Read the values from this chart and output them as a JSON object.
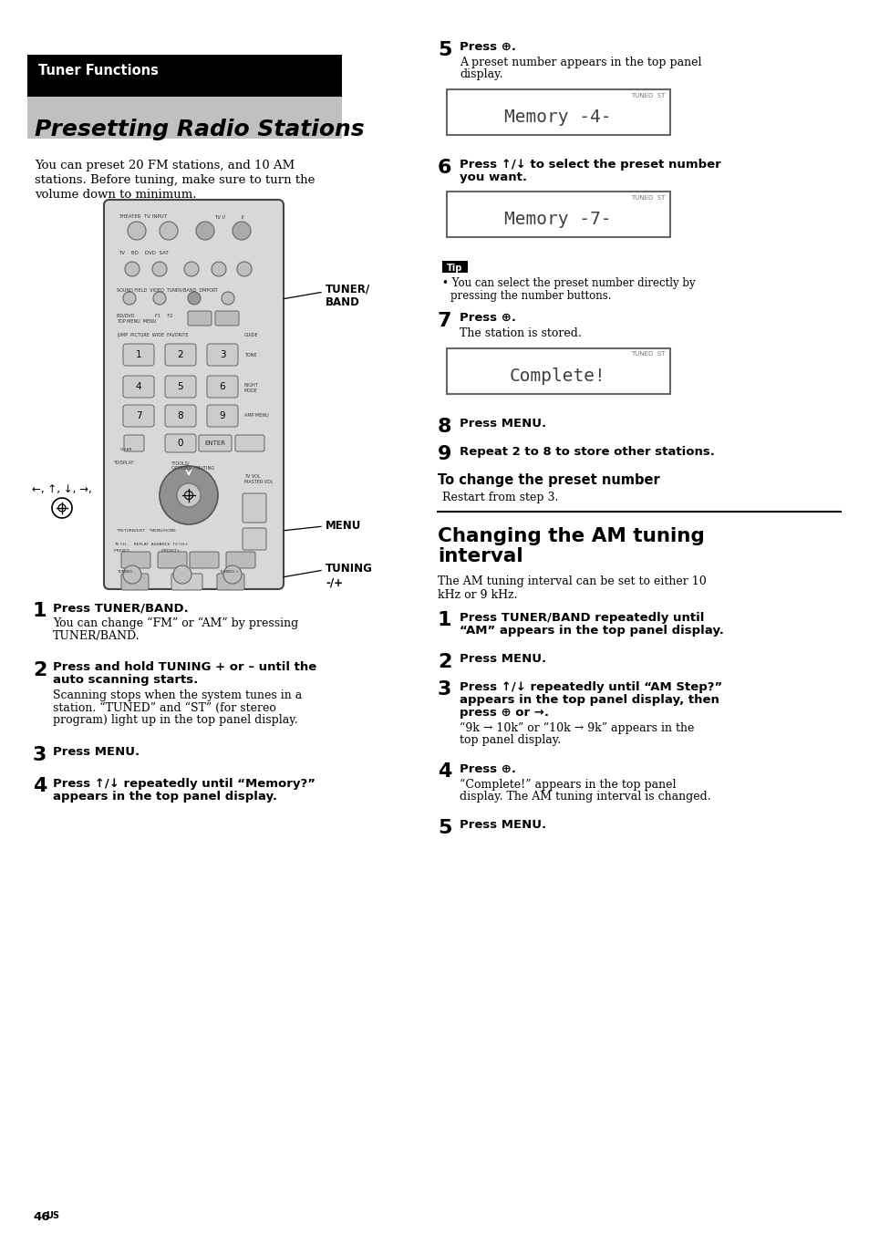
{
  "page_bg": "#ffffff",
  "header_bg": "#000000",
  "header_subtext": "Tuner Functions",
  "header_title": "Presetting Radio Stations",
  "intro_text": "You can preset 20 FM stations, and 10 AM\nstations. Before tuning, make sure to turn the\nvolume down to minimum.",
  "steps_left": [
    {
      "num": "1",
      "bold": "Press TUNER/BAND.",
      "normal": "You can change “FM” or “AM” by pressing\nTUNER/BAND."
    },
    {
      "num": "2",
      "bold": "Press and hold TUNING + or – until the\nauto scanning starts.",
      "normal": "Scanning stops when the system tunes in a\nstation. “TUNED” and “ST” (for stereo\nprogram) light up in the top panel display."
    },
    {
      "num": "3",
      "bold": "Press MENU.",
      "normal": ""
    },
    {
      "num": "4",
      "bold": "Press ↑/↓ repeatedly until “Memory?”\nappears in the top panel display.",
      "normal": ""
    }
  ],
  "steps_right": [
    {
      "num": "5",
      "bold": "Press ⊕.",
      "normal": "A preset number appears in the top panel\ndisplay.",
      "display": "Memory -4-"
    },
    {
      "num": "6",
      "bold": "Press ↑/↓ to select the preset number\nyou want.",
      "normal": "",
      "display": "Memory -7-"
    },
    {
      "is_tip": true,
      "text": "You can select the preset number directly by\npressing the number buttons."
    },
    {
      "num": "7",
      "bold": "Press ⊕.",
      "normal": "The station is stored.",
      "display": "Complete!"
    },
    {
      "num": "8",
      "bold": "Press MENU.",
      "normal": ""
    },
    {
      "num": "9",
      "bold": "Repeat 2 to 8 to store other stations.",
      "normal": ""
    }
  ],
  "to_change_header": "To change the preset number",
  "to_change_text": "Restart from step 3.",
  "section2_title": "Changing the AM tuning\ninterval",
  "section2_intro": "The AM tuning interval can be set to either 10\nkHz or 9 kHz.",
  "steps_right2": [
    {
      "num": "1",
      "bold": "Press TUNER/BAND repeatedly until\n“AM” appears in the top panel display.",
      "normal": ""
    },
    {
      "num": "2",
      "bold": "Press MENU.",
      "normal": ""
    },
    {
      "num": "3",
      "bold": "Press ↑/↓ repeatedly until “AM Step?”\nappears in the top panel display, then\npress ⊕ or →.",
      "normal": "“9k → 10k” or “10k → 9k” appears in the\ntop panel display."
    },
    {
      "num": "4",
      "bold": "Press ⊕.",
      "normal": "“Complete!” appears in the top panel\ndisplay. The AM tuning interval is changed."
    },
    {
      "num": "5",
      "bold": "Press MENU.",
      "normal": ""
    }
  ],
  "page_num": "46"
}
